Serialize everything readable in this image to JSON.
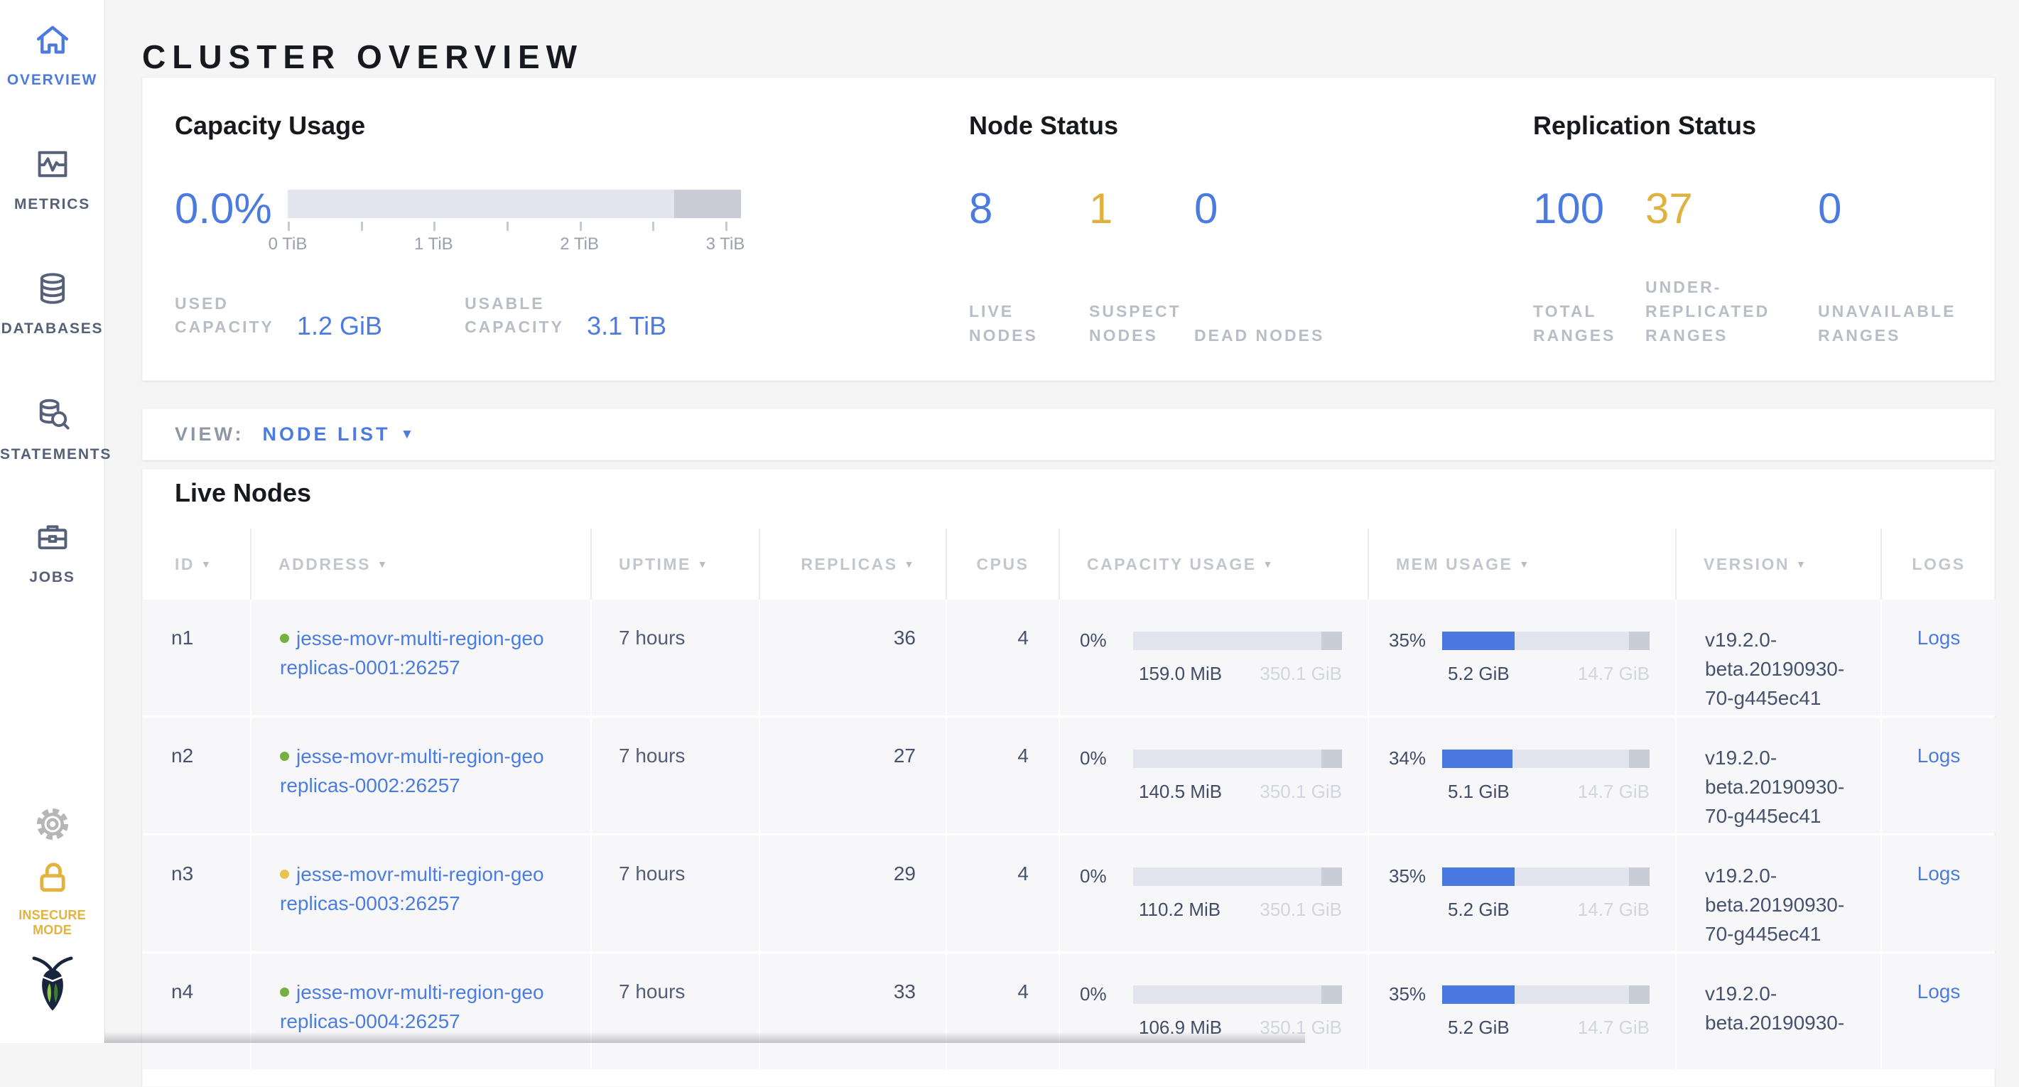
{
  "colors": {
    "blue": "#4b7be0",
    "yellow": "#dfb140",
    "green": "#76b043",
    "yellow_dot": "#e9c351"
  },
  "sidebar": {
    "items": [
      {
        "label": "OVERVIEW",
        "icon": "home-icon",
        "active": true
      },
      {
        "label": "METRICS",
        "icon": "metrics-icon",
        "active": false
      },
      {
        "label": "DATABASES",
        "icon": "databases-icon",
        "active": false
      },
      {
        "label": "STATEMENTS",
        "icon": "statements-icon",
        "active": false
      },
      {
        "label": "JOBS",
        "icon": "jobs-icon",
        "active": false
      }
    ],
    "insecure_mode_label": "INSECURE MODE"
  },
  "page_title": "CLUSTER OVERVIEW",
  "summary": {
    "capacity": {
      "title": "Capacity Usage",
      "percent": "0.0%",
      "axis_ticks": [
        "0 TiB",
        "1 TiB",
        "2 TiB",
        "3 TiB"
      ],
      "used_label": "USED CAPACITY",
      "used_value": "1.2 GiB",
      "usable_label": "USABLE CAPACITY",
      "usable_value": "3.1 TiB"
    },
    "node_status": {
      "title": "Node Status",
      "stats": [
        {
          "value": "8",
          "label": "LIVE NODES",
          "color": "blue"
        },
        {
          "value": "1",
          "label": "SUSPECT NODES",
          "color": "yellow"
        },
        {
          "value": "0",
          "label": "DEAD NODES",
          "color": "blue"
        }
      ]
    },
    "replication_status": {
      "title": "Replication Status",
      "stats": [
        {
          "value": "100",
          "label": "TOTAL RANGES",
          "color": "blue"
        },
        {
          "value": "37",
          "label": "UNDER-REPLICATED RANGES",
          "color": "yellow"
        },
        {
          "value": "0",
          "label": "UNAVAILABLE RANGES",
          "color": "blue"
        }
      ]
    }
  },
  "view_bar": {
    "label": "VIEW:",
    "selected": "NODE LIST"
  },
  "nodes_table": {
    "title": "Live Nodes",
    "columns": [
      {
        "label": "ID",
        "sort": true,
        "align": "left"
      },
      {
        "label": "ADDRESS",
        "sort": true,
        "align": "left"
      },
      {
        "label": "UPTIME",
        "sort": true,
        "align": "left"
      },
      {
        "label": "REPLICAS",
        "sort": true,
        "align": "right"
      },
      {
        "label": "CPUS",
        "sort": false,
        "align": "center"
      },
      {
        "label": "CAPACITY USAGE",
        "sort": true,
        "align": "left"
      },
      {
        "label": "MEM USAGE",
        "sort": true,
        "align": "left"
      },
      {
        "label": "VERSION",
        "sort": true,
        "align": "left"
      },
      {
        "label": "LOGS",
        "sort": false,
        "align": "center"
      }
    ],
    "rows": [
      {
        "id": "n1",
        "dot": "green",
        "address_lines": [
          "jesse-movr-multi-region-geo",
          "replicas-0001:26257"
        ],
        "uptime": "7 hours",
        "replicas": "36",
        "cpus": "4",
        "capacity": {
          "percent": "0%",
          "used": "159.0 MiB",
          "usable": "350.1 GiB"
        },
        "memory": {
          "percent": "35%",
          "used": "5.2 GiB",
          "total": "14.7 GiB"
        },
        "version_lines": [
          "v19.2.0-",
          "beta.20190930-",
          "70-g445ec41"
        ],
        "logs_label": "Logs"
      },
      {
        "id": "n2",
        "dot": "green",
        "address_lines": [
          "jesse-movr-multi-region-geo",
          "replicas-0002:26257"
        ],
        "uptime": "7 hours",
        "replicas": "27",
        "cpus": "4",
        "capacity": {
          "percent": "0%",
          "used": "140.5 MiB",
          "usable": "350.1 GiB"
        },
        "memory": {
          "percent": "34%",
          "used": "5.1 GiB",
          "total": "14.7 GiB"
        },
        "version_lines": [
          "v19.2.0-",
          "beta.20190930-",
          "70-g445ec41"
        ],
        "logs_label": "Logs"
      },
      {
        "id": "n3",
        "dot": "yellow_dot",
        "address_lines": [
          "jesse-movr-multi-region-geo",
          "replicas-0003:26257"
        ],
        "uptime": "7 hours",
        "replicas": "29",
        "cpus": "4",
        "capacity": {
          "percent": "0%",
          "used": "110.2 MiB",
          "usable": "350.1 GiB"
        },
        "memory": {
          "percent": "35%",
          "used": "5.2 GiB",
          "total": "14.7 GiB"
        },
        "version_lines": [
          "v19.2.0-",
          "beta.20190930-",
          "70-g445ec41"
        ],
        "logs_label": "Logs"
      },
      {
        "id": "n4",
        "dot": "green",
        "address_lines": [
          "jesse-movr-multi-region-geo",
          "replicas-0004:26257"
        ],
        "uptime": "7 hours",
        "replicas": "33",
        "cpus": "4",
        "capacity": {
          "percent": "0%",
          "used": "106.9 MiB",
          "usable": "350.1 GiB"
        },
        "memory": {
          "percent": "35%",
          "used": "5.2 GiB",
          "total": "14.7 GiB"
        },
        "version_lines": [
          "v19.2.0-",
          "beta.20190930-"
        ],
        "logs_label": "Logs"
      }
    ]
  }
}
